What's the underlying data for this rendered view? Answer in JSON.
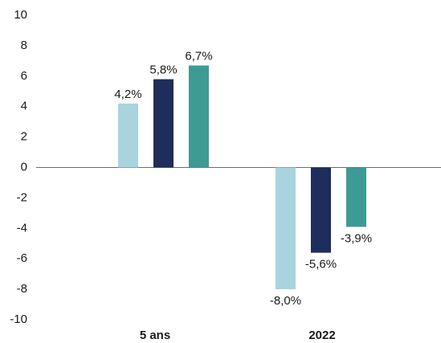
{
  "chart_data": {
    "type": "bar",
    "categories": [
      "5 ans",
      "2022"
    ],
    "series": [
      {
        "color": "#a9d3df",
        "values": [
          4.2,
          -8.0
        ],
        "value_labels": [
          "4,2%",
          "-8,0%"
        ]
      },
      {
        "color": "#1f2d5c",
        "values": [
          5.8,
          -5.6
        ],
        "value_labels": [
          "5,8%",
          "-5,6%"
        ]
      },
      {
        "color": "#3e9b94",
        "values": [
          6.7,
          -3.9
        ],
        "value_labels": [
          "6,7%",
          "-3,9%"
        ]
      }
    ],
    "ylim": [
      -10,
      10
    ],
    "yticks": [
      10,
      8,
      6,
      4,
      2,
      0,
      -2,
      -4,
      -6,
      -8,
      -10
    ]
  }
}
